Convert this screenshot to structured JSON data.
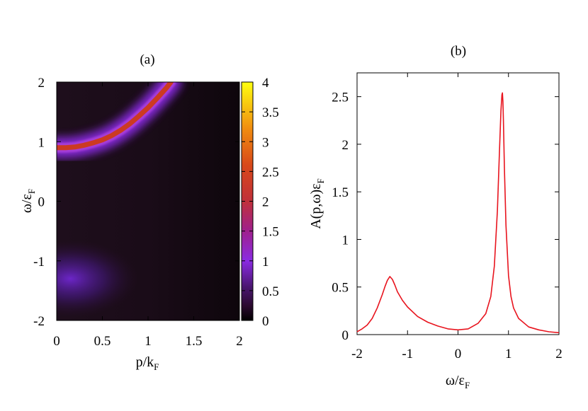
{
  "chart_data": [
    {
      "type": "heatmap",
      "panel_label": "(a)",
      "xlabel": {
        "main": "p/k",
        "sub": "F"
      },
      "ylabel": {
        "main": "ω/ε",
        "sub": "F"
      },
      "xlim": [
        0,
        2
      ],
      "ylim": [
        -2,
        2
      ],
      "x_ticks": [
        "0",
        "0.5",
        "1",
        "1.5",
        "2"
      ],
      "y_ticks": [
        "-2",
        "-1",
        "0",
        "1",
        "2"
      ],
      "colorbar": {
        "range": [
          0,
          4
        ],
        "ticks": [
          "0",
          "0.5",
          "1",
          "1.5",
          "2",
          "2.5",
          "3",
          "3.5",
          "4"
        ],
        "palette": "black-purple-violet-red-orange-yellow"
      },
      "dispersion_curve": {
        "p": [
          0,
          0.1,
          0.2,
          0.3,
          0.4,
          0.5,
          0.6,
          0.7,
          0.8,
          0.9,
          1.0,
          1.1,
          1.2,
          1.25
        ],
        "omega": [
          0.9,
          0.9,
          0.91,
          0.94,
          0.98,
          1.03,
          1.1,
          1.19,
          1.3,
          1.43,
          1.57,
          1.73,
          1.9,
          2.0
        ],
        "peak_value": 3
      },
      "broad_feature": {
        "p_center": 0.15,
        "omega_center": -1.3,
        "peak_value": 1
      }
    },
    {
      "type": "line",
      "panel_label": "(b)",
      "xlabel": {
        "main": "ω/ε",
        "sub": "F"
      },
      "ylabel": {
        "main": "A(p,ω)ε",
        "sub": "F"
      },
      "xlim": [
        -2,
        2
      ],
      "ylim": [
        0,
        2.75
      ],
      "x_ticks": [
        "-2",
        "-1",
        "0",
        "1",
        "2"
      ],
      "y_ticks": [
        "0",
        "0.5",
        "1",
        "1.5",
        "2",
        "2.5"
      ],
      "color": "#e8141e",
      "x": [
        -2.0,
        -1.9,
        -1.8,
        -1.7,
        -1.6,
        -1.5,
        -1.45,
        -1.4,
        -1.35,
        -1.3,
        -1.25,
        -1.2,
        -1.1,
        -1.0,
        -0.8,
        -0.6,
        -0.4,
        -0.2,
        0.0,
        0.2,
        0.4,
        0.55,
        0.65,
        0.72,
        0.78,
        0.82,
        0.85,
        0.87,
        0.88,
        0.89,
        0.9,
        0.92,
        0.95,
        1.0,
        1.05,
        1.1,
        1.2,
        1.4,
        1.6,
        1.8,
        2.0
      ],
      "y": [
        0.03,
        0.06,
        0.1,
        0.17,
        0.28,
        0.42,
        0.5,
        0.57,
        0.61,
        0.58,
        0.52,
        0.45,
        0.36,
        0.29,
        0.19,
        0.13,
        0.09,
        0.06,
        0.05,
        0.06,
        0.12,
        0.22,
        0.4,
        0.72,
        1.3,
        1.9,
        2.35,
        2.52,
        2.54,
        2.45,
        2.25,
        1.75,
        1.15,
        0.62,
        0.4,
        0.28,
        0.17,
        0.08,
        0.05,
        0.03,
        0.02
      ]
    }
  ]
}
